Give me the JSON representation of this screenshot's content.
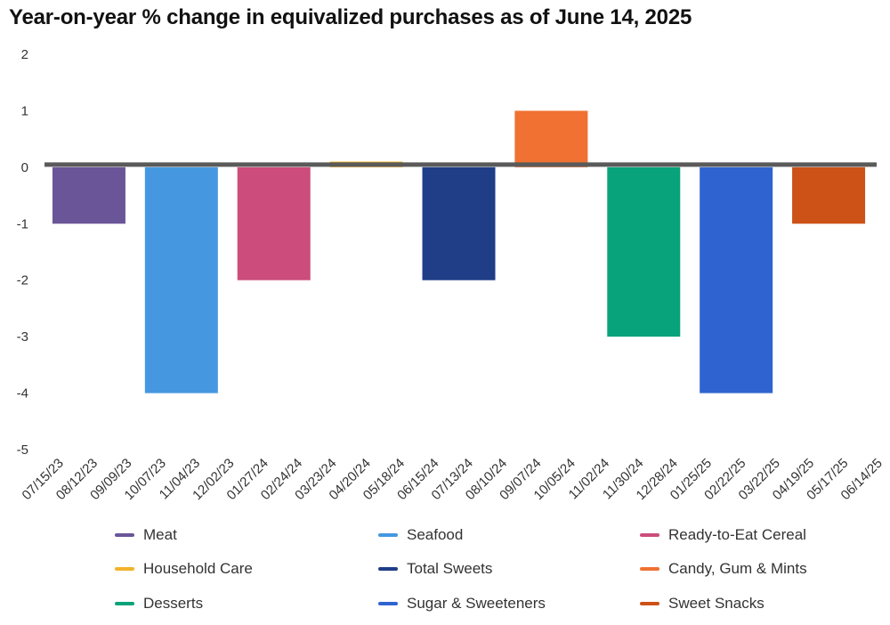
{
  "title": "Year-on-year % change in equivalized purchases as of June 14, 2025",
  "chart_data": {
    "type": "bar",
    "title": "Year-on-year % change in equivalized purchases as of June 14, 2025",
    "xlabel": "",
    "ylabel": "",
    "ylim": [
      -5,
      2
    ],
    "yticks": [
      "2",
      "1",
      "0",
      "-1",
      "-2",
      "-3",
      "-4",
      "-5"
    ],
    "x_tick_labels": [
      "07/15/23",
      "08/12/23",
      "09/09/23",
      "10/07/23",
      "11/04/23",
      "12/02/23",
      "01/27/24",
      "02/24/24",
      "03/23/24",
      "04/20/24",
      "05/18/24",
      "06/15/24",
      "07/13/24",
      "08/10/24",
      "09/07/24",
      "10/05/24",
      "11/02/24",
      "11/30/24",
      "12/28/24",
      "01/25/25",
      "02/22/25",
      "03/22/25",
      "04/19/25",
      "05/17/25",
      "06/14/25"
    ],
    "grid": false,
    "legend_position": "bottom",
    "series": [
      {
        "name": "Meat",
        "value": -1,
        "color": "#6a5599"
      },
      {
        "name": "Seafood",
        "value": -4,
        "color": "#4598e0"
      },
      {
        "name": "Ready-to-Eat Cereal",
        "value": -2,
        "color": "#cc4c7b"
      },
      {
        "name": "Household Care",
        "value": 0.1,
        "color": "#f2b229"
      },
      {
        "name": "Total Sweets",
        "value": -2,
        "color": "#1f3e87"
      },
      {
        "name": "Candy, Gum & Mints",
        "value": 1,
        "color": "#f07132"
      },
      {
        "name": "Desserts",
        "value": -3,
        "color": "#08a37a"
      },
      {
        "name": "Sugar & Sweeteners",
        "value": -4,
        "color": "#2f64d0"
      },
      {
        "name": "Sweet Snacks",
        "value": -1,
        "color": "#cc5218"
      }
    ],
    "zero_line_color": "#5a5a5a"
  }
}
